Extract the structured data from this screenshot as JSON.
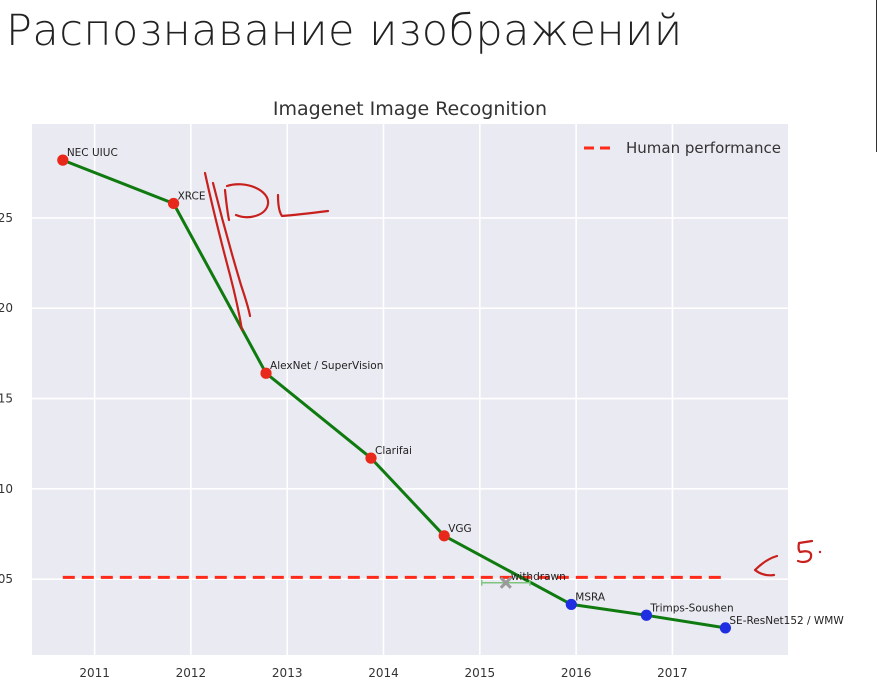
{
  "slide": {
    "title": "Распознавание изображений"
  },
  "annotations_handwritten": {
    "dl_note": "DL",
    "human_note": "5."
  },
  "chart_data": {
    "type": "line",
    "title": "Imagenet Image Recognition",
    "xlabel": "",
    "ylabel": "",
    "xlim": [
      2010.35,
      2018.2
    ],
    "ylim": [
      0.008,
      0.302
    ],
    "x_ticks": [
      2011,
      2012,
      2013,
      2014,
      2015,
      2016,
      2017
    ],
    "y_ticks": [
      0.05,
      0.1,
      0.15,
      0.2,
      0.25
    ],
    "y_tick_labels": [
      "05",
      "10",
      "15",
      "20",
      "25"
    ],
    "grid": true,
    "legend": {
      "placement": "top-right",
      "entries": [
        "Human performance"
      ]
    },
    "series": [
      {
        "line_color": "#0f7a0f",
        "points": [
          {
            "label": "NEC UIUC",
            "x": 2010.67,
            "y": 0.282,
            "color": "#e8281a"
          },
          {
            "label": "XRCE",
            "x": 2011.82,
            "y": 0.258,
            "color": "#e8281a"
          },
          {
            "label": "AlexNet / SuperVision",
            "x": 2012.78,
            "y": 0.164,
            "color": "#e8281a"
          },
          {
            "label": "Clarifai",
            "x": 2013.87,
            "y": 0.117,
            "color": "#e8281a"
          },
          {
            "label": "VGG",
            "x": 2014.63,
            "y": 0.074,
            "color": "#e8281a"
          },
          {
            "label": "MSRA",
            "x": 2015.95,
            "y": 0.036,
            "color": "#1f2ee0"
          },
          {
            "label": "Trimps-Soushen",
            "x": 2016.73,
            "y": 0.03,
            "color": "#1f2ee0"
          },
          {
            "label": "SE-ResNet152 / WMW",
            "x": 2017.55,
            "y": 0.023,
            "color": "#1f2ee0"
          }
        ]
      }
    ],
    "withdrawn": {
      "label": "withdrawn",
      "x": 2015.27,
      "y": 0.048,
      "xerr": 0.25
    },
    "human_performance": {
      "name": "Human performance",
      "y": 0.051,
      "x_start": 2010.67,
      "x_end": 2017.55,
      "color": "#ff2a1a"
    },
    "colors": {
      "background": "#eaeaf2",
      "grid": "#ffffff"
    }
  }
}
